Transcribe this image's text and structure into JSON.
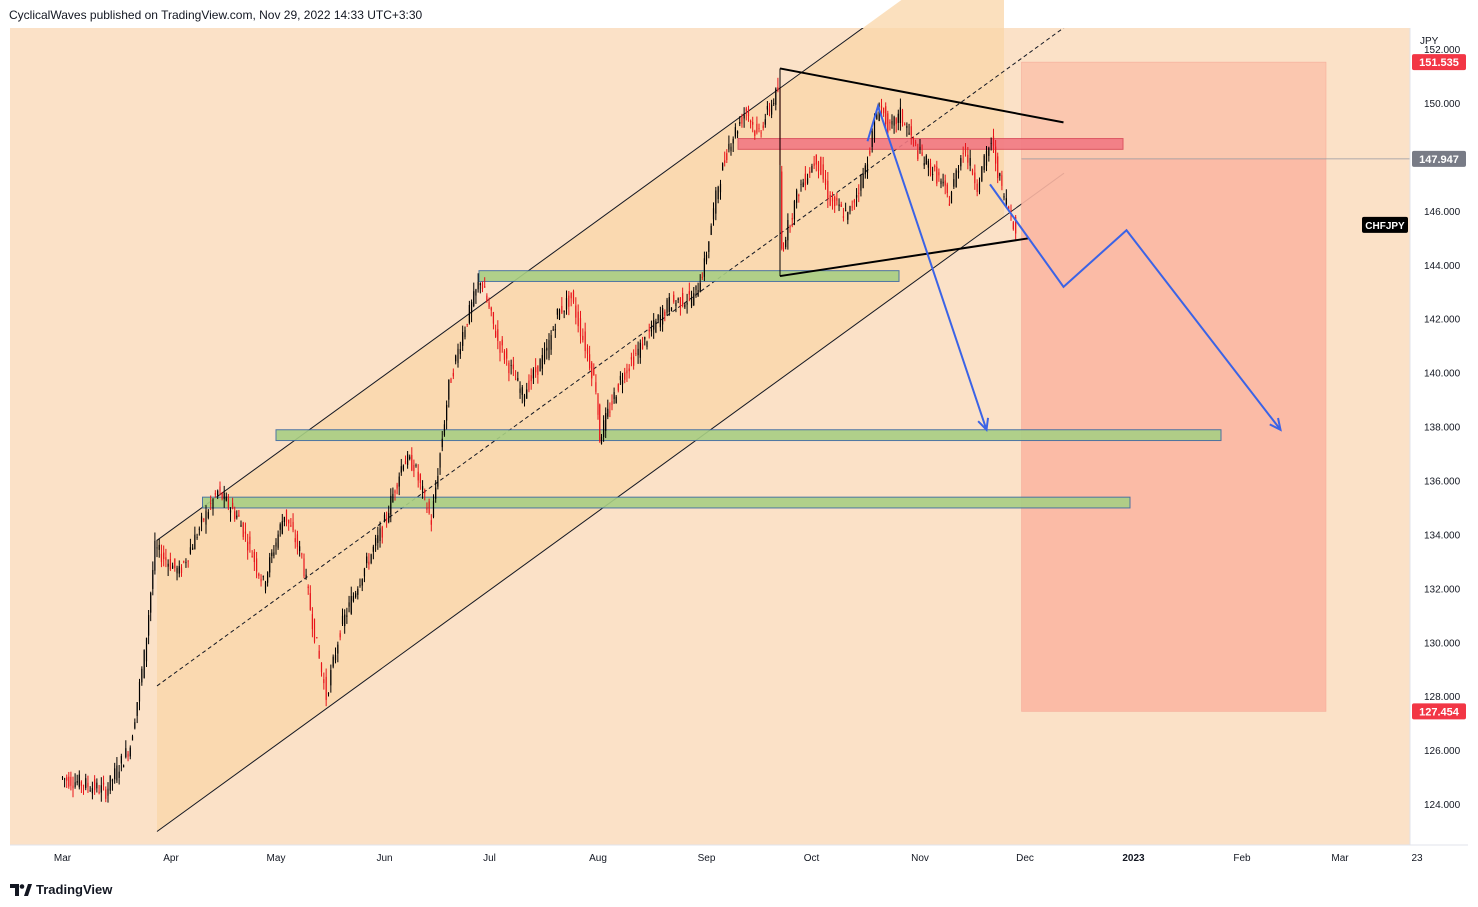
{
  "header": {
    "publisher_line": "CyclicalWaves published on TradingView.com, Nov 29, 2022 14:33 UTC+3:30"
  },
  "footer": {
    "brand": "TradingView"
  },
  "colors": {
    "background": "#fbe1c7",
    "channel_fill": "#f9d6a8",
    "price_up": "#000000",
    "price_down": "#e8141a",
    "short_zone": "#fcb7a3",
    "target_zone": "#fcc5ad",
    "blue_path": "#3b63e6",
    "green_zone": "#a8cf84",
    "red_zone": "#f27983"
  },
  "chart_data": {
    "type": "candlestick",
    "symbol": "CHFJPY",
    "y_axis_unit": "JPY",
    "ylim": [
      122.5,
      152.8
    ],
    "y_ticks": [
      "152.000",
      "150.000",
      "148.000",
      "146.000",
      "144.000",
      "142.000",
      "140.000",
      "138.000",
      "136.000",
      "134.000",
      "132.000",
      "130.000",
      "128.000",
      "126.000",
      "124.000"
    ],
    "x_ticks": [
      "Mar",
      "Apr",
      "May",
      "Jun",
      "Jul",
      "Aug",
      "Sep",
      "Oct",
      "Nov",
      "Dec",
      "2023",
      "Feb",
      "Mar",
      "23"
    ],
    "price_labels": [
      {
        "text": "151.535",
        "value": 151.535,
        "color": "#f23645"
      },
      {
        "text": "147.947",
        "value": 147.947,
        "color": "#787b86"
      },
      {
        "text": "127.454",
        "value": 127.454,
        "color": "#f23645"
      }
    ],
    "symbol_label": {
      "text": "CHFJPY",
      "value": 145.5
    },
    "price_path": [
      [
        "2022-03-01",
        125.0
      ],
      [
        "2022-03-07",
        124.8
      ],
      [
        "2022-03-14",
        124.5
      ],
      [
        "2022-03-21",
        126.2
      ],
      [
        "2022-03-25",
        129.5
      ],
      [
        "2022-03-28",
        133.5
      ],
      [
        "2022-04-04",
        132.6
      ],
      [
        "2022-04-11",
        134.6
      ],
      [
        "2022-04-15",
        135.6
      ],
      [
        "2022-04-21",
        134.6
      ],
      [
        "2022-04-28",
        132.2
      ],
      [
        "2022-05-04",
        134.8
      ],
      [
        "2022-05-09",
        133.2
      ],
      [
        "2022-05-12",
        130.8
      ],
      [
        "2022-05-16",
        128.0
      ],
      [
        "2022-05-20",
        130.5
      ],
      [
        "2022-05-25",
        132.2
      ],
      [
        "2022-06-01",
        134.2
      ],
      [
        "2022-06-07",
        136.8
      ],
      [
        "2022-06-10",
        136.6
      ],
      [
        "2022-06-15",
        134.5
      ],
      [
        "2022-06-20",
        139.5
      ],
      [
        "2022-06-24",
        141.5
      ],
      [
        "2022-06-29",
        143.5
      ],
      [
        "2022-07-04",
        141.2
      ],
      [
        "2022-07-11",
        139.2
      ],
      [
        "2022-07-18",
        140.8
      ],
      [
        "2022-07-21",
        142.2
      ],
      [
        "2022-07-25",
        142.8
      ],
      [
        "2022-07-29",
        141.0
      ],
      [
        "2022-08-01",
        139.5
      ],
      [
        "2022-08-02",
        137.6
      ],
      [
        "2022-08-08",
        139.8
      ],
      [
        "2022-08-15",
        141.2
      ],
      [
        "2022-08-22",
        142.6
      ],
      [
        "2022-08-29",
        142.8
      ],
      [
        "2022-09-01",
        144.0
      ],
      [
        "2022-09-05",
        147.0
      ],
      [
        "2022-09-08",
        148.5
      ],
      [
        "2022-09-13",
        149.8
      ],
      [
        "2022-09-16",
        148.8
      ],
      [
        "2022-09-22",
        150.5
      ],
      [
        "2022-09-23",
        144.6
      ],
      [
        "2022-09-28",
        146.8
      ],
      [
        "2022-10-03",
        148.0
      ],
      [
        "2022-10-07",
        146.4
      ],
      [
        "2022-10-12",
        145.8
      ],
      [
        "2022-10-17",
        147.6
      ],
      [
        "2022-10-21",
        150.0
      ],
      [
        "2022-10-24",
        149.0
      ],
      [
        "2022-10-27",
        149.6
      ],
      [
        "2022-11-01",
        148.2
      ],
      [
        "2022-11-07",
        147.2
      ],
      [
        "2022-11-10",
        146.4
      ],
      [
        "2022-11-14",
        148.4
      ],
      [
        "2022-11-18",
        147.0
      ],
      [
        "2022-11-22",
        148.6
      ],
      [
        "2022-11-25",
        146.8
      ],
      [
        "2022-11-29",
        145.4
      ]
    ],
    "channel": {
      "start": [
        "2022-03-28",
        133.8,
        123.0
      ],
      "end": [
        "2022-11-25",
        156.6,
        145.8
      ]
    },
    "triangle": {
      "top_start": [
        "2022-09-22",
        151.3
      ],
      "top_end": [
        "2022-12-12",
        149.3
      ],
      "bottom_start": [
        "2022-09-22",
        143.6
      ],
      "bottom_end": [
        "2022-12-02",
        145.0
      ]
    },
    "zones": [
      {
        "kind": "resistance",
        "from": "2022-09-10",
        "to": "2022-12-29",
        "top": 148.7,
        "bottom": 148.3
      },
      {
        "kind": "support",
        "from": "2022-06-28",
        "to": "2022-10-26",
        "top": 143.8,
        "bottom": 143.4
      },
      {
        "kind": "support",
        "from": "2022-05-01",
        "to": "2023-01-26",
        "top": 137.9,
        "bottom": 137.5
      },
      {
        "kind": "support",
        "from": "2022-04-10",
        "to": "2022-12-31",
        "top": 135.4,
        "bottom": 135.0
      }
    ],
    "short_position": {
      "from": "2022-11-30",
      "to": "2023-02-25",
      "entry": 147.947,
      "target": 127.454,
      "stop": 151.535
    },
    "projection_path": [
      [
        "2022-11-21",
        147.0
      ],
      [
        "2022-12-12",
        143.2
      ],
      [
        "2022-12-30",
        145.3
      ],
      [
        "2023-02-12",
        137.9
      ]
    ],
    "projection_arrow": [
      [
        "2022-10-17",
        148.6
      ],
      [
        "2022-10-20",
        149.9
      ],
      [
        "2022-11-20",
        137.9
      ]
    ]
  }
}
